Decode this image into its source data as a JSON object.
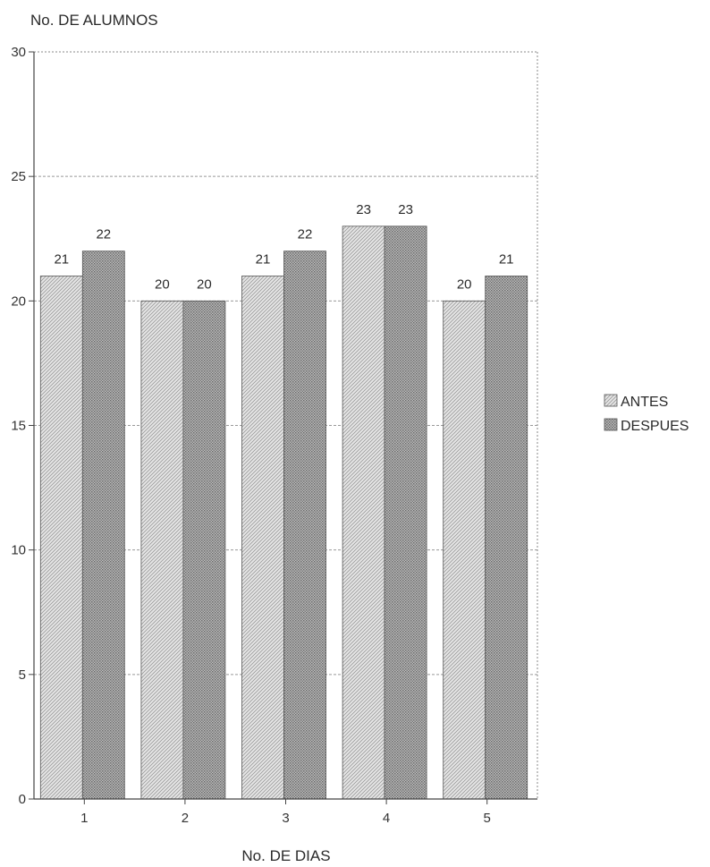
{
  "chart_data": {
    "type": "bar",
    "ylabel": "No. DE ALUMNOS",
    "xlabel": "No. DE DIAS",
    "categories": [
      "1",
      "2",
      "3",
      "4",
      "5"
    ],
    "series": [
      {
        "name": "ANTES",
        "values": [
          21,
          20,
          21,
          23,
          20
        ]
      },
      {
        "name": "DESPUES",
        "values": [
          22,
          20,
          22,
          23,
          21
        ]
      }
    ],
    "ylim": [
      0,
      30
    ],
    "yticks": [
      0,
      5,
      10,
      15,
      20,
      25,
      30
    ],
    "yticks_text": [
      "0",
      "5",
      "10",
      "15",
      "20",
      "25",
      "30"
    ],
    "data_labels": [
      [
        "21",
        "20",
        "21",
        "23",
        "20"
      ],
      [
        "22",
        "20",
        "22",
        "23",
        "21"
      ]
    ],
    "grid": "horizontal dashed",
    "legend": "right"
  }
}
